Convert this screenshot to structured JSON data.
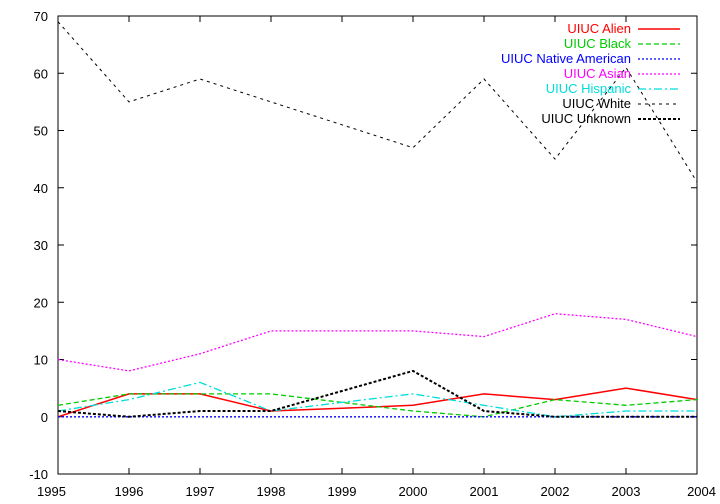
{
  "chart_data": {
    "type": "line",
    "x": [
      1995,
      1996,
      1997,
      1998,
      1999,
      2000,
      2001,
      2002,
      2003,
      2004
    ],
    "x_ticks": [
      "1995",
      "1996",
      "1997",
      "1998",
      "1999",
      "2000",
      "2001",
      "2002",
      "2003",
      "2004"
    ],
    "y_ticks": [
      "-10",
      "0",
      "10",
      "20",
      "30",
      "40",
      "50",
      "60",
      "70"
    ],
    "xlim": [
      1995,
      2004
    ],
    "ylim": [
      -10,
      70
    ],
    "grid": false,
    "legend_placement": "top-right",
    "series": [
      {
        "name": "UIUC Alien",
        "color": "#ff0000",
        "dash": "solid",
        "values": [
          0,
          4,
          4,
          1,
          1.5,
          2,
          4,
          3,
          5,
          3
        ]
      },
      {
        "name": "UIUC Black",
        "color": "#00cc00",
        "dash": "dashed",
        "values": [
          2,
          4,
          4,
          4,
          2.5,
          1,
          0,
          3,
          2,
          3
        ]
      },
      {
        "name": "UIUC Native American",
        "color": "#0000ff",
        "dash": "dotted",
        "values": [
          0,
          0,
          0,
          0,
          0,
          0,
          0,
          0,
          0,
          0
        ]
      },
      {
        "name": "UIUC Asian",
        "color": "#ff00ff",
        "dash": "dotted",
        "values": [
          10,
          8,
          11,
          15,
          15,
          15,
          14,
          18,
          17,
          14
        ]
      },
      {
        "name": "UIUC Hispanic",
        "color": "#00dddd",
        "dash": "dashdot",
        "values": [
          1,
          3,
          6,
          1,
          2.5,
          4,
          2,
          0,
          1,
          1
        ]
      },
      {
        "name": "UIUC White",
        "color": "#000000",
        "dash": "shortdash",
        "values": [
          69,
          55,
          59,
          55,
          51,
          47,
          59,
          45,
          61,
          41
        ]
      },
      {
        "name": "UIUC Unknown",
        "color": "#000000",
        "dash": "densedot",
        "values": [
          1,
          0,
          1,
          1,
          4.5,
          8,
          1,
          0,
          0,
          0
        ]
      }
    ]
  }
}
